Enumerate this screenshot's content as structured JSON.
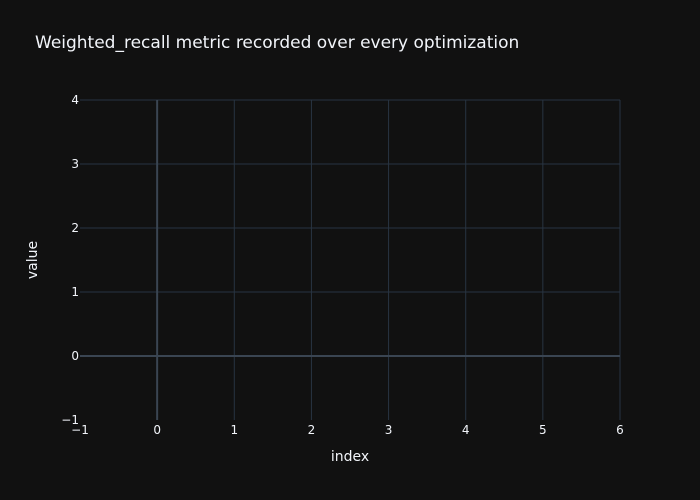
{
  "chart_data": {
    "type": "line",
    "title": "Weighted_recall metric recorded over every optimization",
    "xlabel": "index",
    "ylabel": "value",
    "xlim": [
      -1,
      6
    ],
    "ylim": [
      -1,
      4
    ],
    "x_ticks": [
      -1,
      0,
      1,
      2,
      3,
      4,
      5,
      6
    ],
    "y_ticks": [
      -1,
      0,
      1,
      2,
      3,
      4
    ],
    "x_tick_labels": [
      "−1",
      "0",
      "1",
      "2",
      "3",
      "4",
      "5",
      "6"
    ],
    "y_tick_labels": [
      "−1",
      "0",
      "1",
      "2",
      "3",
      "4"
    ],
    "grid": true,
    "series": []
  },
  "colors": {
    "background": "#111111",
    "grid": "#283442",
    "zeroline": "#3a4552",
    "text": "#f2f5fa"
  }
}
